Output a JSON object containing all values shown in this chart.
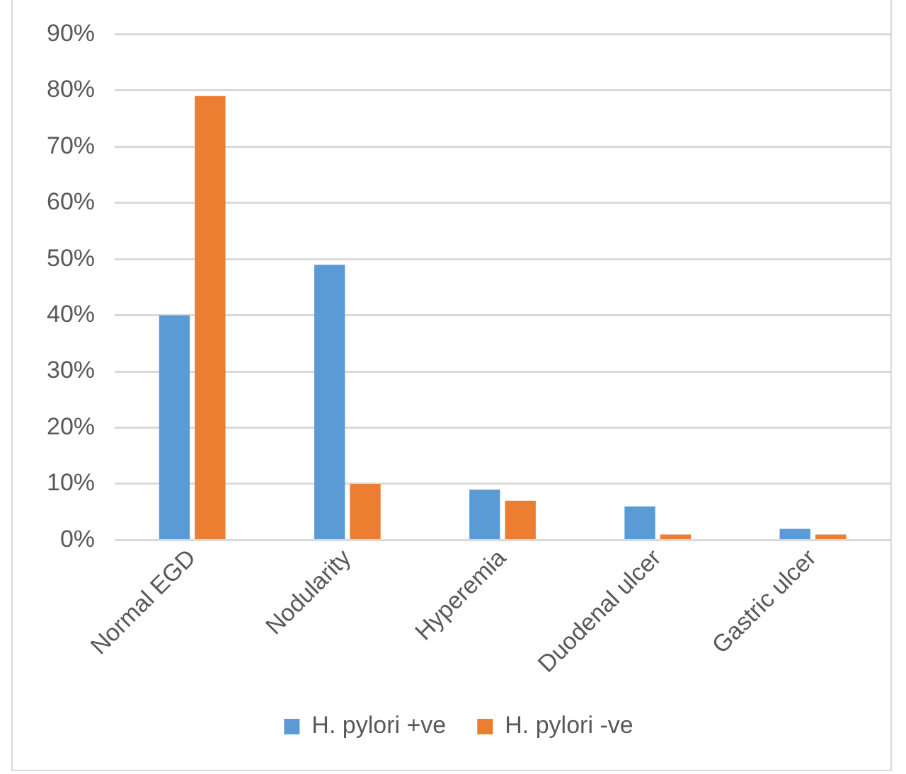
{
  "chart_data": {
    "type": "bar",
    "categories": [
      "Normal EGD",
      "Nodularity",
      "Hyperemia",
      "Duodenal ulcer",
      "Gastric ulcer"
    ],
    "series": [
      {
        "name": "H. pylori +ve",
        "color": "#5b9bd5",
        "values": [
          40,
          49,
          9,
          6,
          2
        ]
      },
      {
        "name": "H. pylori -ve",
        "color": "#ed7d31",
        "values": [
          79,
          10,
          7,
          1,
          1
        ]
      }
    ],
    "ylim": [
      0,
      90
    ],
    "yticks": [
      {
        "value": 0,
        "label": "0%"
      },
      {
        "value": 10,
        "label": "10%"
      },
      {
        "value": 20,
        "label": "20%"
      },
      {
        "value": 30,
        "label": "30%"
      },
      {
        "value": 40,
        "label": "40%"
      },
      {
        "value": 50,
        "label": "50%"
      },
      {
        "value": 60,
        "label": "60%"
      },
      {
        "value": 70,
        "label": "70%"
      },
      {
        "value": 80,
        "label": "80%"
      },
      {
        "value": 90,
        "label": "90%"
      }
    ],
    "grid": "y",
    "legend": "bottom"
  }
}
